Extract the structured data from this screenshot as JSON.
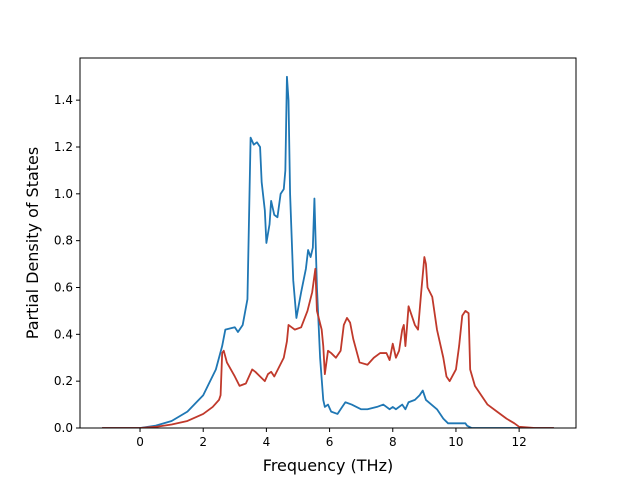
{
  "chart_data": {
    "type": "line",
    "title": "",
    "xlabel": "Frequency (THz)",
    "ylabel": "Partial Density of States",
    "xlim": [
      -1.9,
      13.8
    ],
    "ylim": [
      0,
      1.58
    ],
    "xticks": [
      0,
      2,
      4,
      6,
      8,
      10,
      12
    ],
    "yticks": [
      0.0,
      0.2,
      0.4,
      0.6,
      0.8,
      1.0,
      1.2,
      1.4
    ],
    "xtick_labels": [
      "0",
      "2",
      "4",
      "6",
      "8",
      "10",
      "12"
    ],
    "ytick_labels": [
      "0.0",
      "0.2",
      "0.4",
      "0.6",
      "0.8",
      "1.0",
      "1.2",
      "1.4"
    ],
    "grid": false,
    "legend": false,
    "series": [
      {
        "color": "#1f77b4",
        "points": [
          [
            -1.2,
            0
          ],
          [
            0,
            0
          ],
          [
            0.5,
            0.01
          ],
          [
            1.0,
            0.03
          ],
          [
            1.5,
            0.07
          ],
          [
            2.0,
            0.14
          ],
          [
            2.4,
            0.25
          ],
          [
            2.6,
            0.35
          ],
          [
            2.7,
            0.42
          ],
          [
            3.0,
            0.43
          ],
          [
            3.1,
            0.41
          ],
          [
            3.25,
            0.44
          ],
          [
            3.4,
            0.55
          ],
          [
            3.5,
            1.24
          ],
          [
            3.6,
            1.21
          ],
          [
            3.7,
            1.22
          ],
          [
            3.8,
            1.2
          ],
          [
            3.85,
            1.05
          ],
          [
            3.95,
            0.93
          ],
          [
            4.0,
            0.79
          ],
          [
            4.1,
            0.87
          ],
          [
            4.15,
            0.97
          ],
          [
            4.25,
            0.91
          ],
          [
            4.35,
            0.9
          ],
          [
            4.45,
            1.0
          ],
          [
            4.55,
            1.02
          ],
          [
            4.6,
            1.1
          ],
          [
            4.65,
            1.5
          ],
          [
            4.7,
            1.4
          ],
          [
            4.75,
            1.0
          ],
          [
            4.85,
            0.63
          ],
          [
            4.95,
            0.47
          ],
          [
            5.1,
            0.58
          ],
          [
            5.25,
            0.68
          ],
          [
            5.32,
            0.76
          ],
          [
            5.4,
            0.73
          ],
          [
            5.47,
            0.77
          ],
          [
            5.52,
            0.98
          ],
          [
            5.6,
            0.6
          ],
          [
            5.7,
            0.3
          ],
          [
            5.8,
            0.12
          ],
          [
            5.85,
            0.09
          ],
          [
            5.95,
            0.1
          ],
          [
            6.05,
            0.07
          ],
          [
            6.25,
            0.06
          ],
          [
            6.4,
            0.09
          ],
          [
            6.5,
            0.11
          ],
          [
            6.7,
            0.1
          ],
          [
            7.0,
            0.08
          ],
          [
            7.2,
            0.08
          ],
          [
            7.5,
            0.09
          ],
          [
            7.7,
            0.1
          ],
          [
            7.9,
            0.08
          ],
          [
            8.0,
            0.09
          ],
          [
            8.1,
            0.08
          ],
          [
            8.3,
            0.1
          ],
          [
            8.4,
            0.08
          ],
          [
            8.5,
            0.11
          ],
          [
            8.7,
            0.12
          ],
          [
            8.85,
            0.14
          ],
          [
            8.95,
            0.16
          ],
          [
            9.05,
            0.12
          ],
          [
            9.4,
            0.08
          ],
          [
            9.6,
            0.04
          ],
          [
            9.75,
            0.02
          ],
          [
            10.1,
            0.02
          ],
          [
            10.3,
            0.02
          ],
          [
            10.35,
            0.01
          ],
          [
            10.5,
            0
          ],
          [
            12.0,
            0
          ],
          [
            13.1,
            0
          ]
        ]
      },
      {
        "color": "#c0392b",
        "points": [
          [
            -1.2,
            0
          ],
          [
            0,
            0
          ],
          [
            0.5,
            0.005
          ],
          [
            1.0,
            0.015
          ],
          [
            1.5,
            0.03
          ],
          [
            2.0,
            0.06
          ],
          [
            2.3,
            0.09
          ],
          [
            2.5,
            0.12
          ],
          [
            2.55,
            0.14
          ],
          [
            2.6,
            0.32
          ],
          [
            2.65,
            0.33
          ],
          [
            2.75,
            0.28
          ],
          [
            3.0,
            0.22
          ],
          [
            3.15,
            0.18
          ],
          [
            3.35,
            0.19
          ],
          [
            3.45,
            0.22
          ],
          [
            3.55,
            0.25
          ],
          [
            3.65,
            0.24
          ],
          [
            3.8,
            0.22
          ],
          [
            3.95,
            0.2
          ],
          [
            4.05,
            0.23
          ],
          [
            4.15,
            0.24
          ],
          [
            4.25,
            0.22
          ],
          [
            4.4,
            0.26
          ],
          [
            4.55,
            0.3
          ],
          [
            4.65,
            0.37
          ],
          [
            4.7,
            0.44
          ],
          [
            4.8,
            0.43
          ],
          [
            4.9,
            0.42
          ],
          [
            5.1,
            0.43
          ],
          [
            5.3,
            0.5
          ],
          [
            5.45,
            0.58
          ],
          [
            5.55,
            0.68
          ],
          [
            5.6,
            0.5
          ],
          [
            5.75,
            0.42
          ],
          [
            5.8,
            0.35
          ],
          [
            5.85,
            0.23
          ],
          [
            5.95,
            0.33
          ],
          [
            6.05,
            0.32
          ],
          [
            6.2,
            0.3
          ],
          [
            6.35,
            0.33
          ],
          [
            6.45,
            0.44
          ],
          [
            6.55,
            0.47
          ],
          [
            6.65,
            0.45
          ],
          [
            6.75,
            0.38
          ],
          [
            6.95,
            0.28
          ],
          [
            7.2,
            0.27
          ],
          [
            7.4,
            0.3
          ],
          [
            7.6,
            0.32
          ],
          [
            7.8,
            0.32
          ],
          [
            7.9,
            0.29
          ],
          [
            8.0,
            0.36
          ],
          [
            8.1,
            0.3
          ],
          [
            8.2,
            0.33
          ],
          [
            8.3,
            0.42
          ],
          [
            8.35,
            0.44
          ],
          [
            8.4,
            0.35
          ],
          [
            8.45,
            0.43
          ],
          [
            8.5,
            0.52
          ],
          [
            8.6,
            0.48
          ],
          [
            8.7,
            0.44
          ],
          [
            8.8,
            0.42
          ],
          [
            8.9,
            0.58
          ],
          [
            9.0,
            0.73
          ],
          [
            9.05,
            0.7
          ],
          [
            9.1,
            0.6
          ],
          [
            9.25,
            0.56
          ],
          [
            9.4,
            0.42
          ],
          [
            9.6,
            0.3
          ],
          [
            9.7,
            0.22
          ],
          [
            9.8,
            0.2
          ],
          [
            10.0,
            0.25
          ],
          [
            10.1,
            0.35
          ],
          [
            10.2,
            0.48
          ],
          [
            10.3,
            0.5
          ],
          [
            10.4,
            0.49
          ],
          [
            10.45,
            0.25
          ],
          [
            10.6,
            0.18
          ],
          [
            10.8,
            0.14
          ],
          [
            11.0,
            0.1
          ],
          [
            11.3,
            0.07
          ],
          [
            11.6,
            0.04
          ],
          [
            11.85,
            0.02
          ],
          [
            12.0,
            0.005
          ],
          [
            12.5,
            0
          ],
          [
            13.1,
            0
          ]
        ]
      }
    ]
  }
}
